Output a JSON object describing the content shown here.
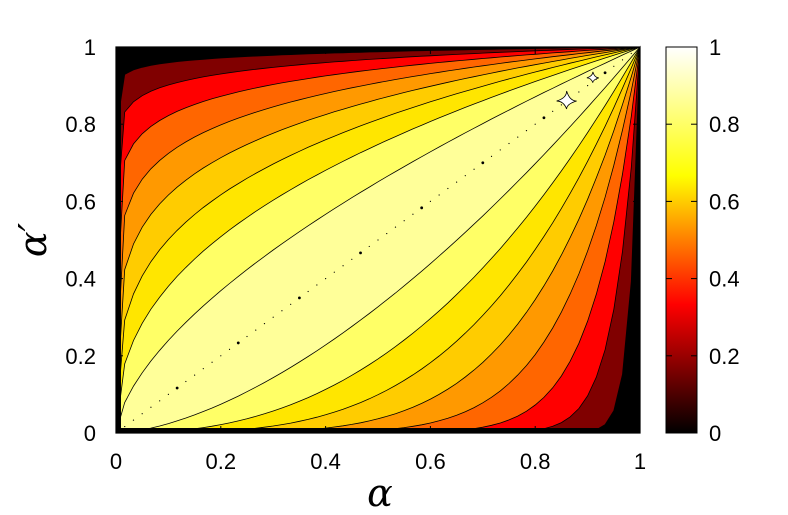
{
  "chart_data": {
    "type": "heatmap",
    "title": "",
    "xlabel": "α",
    "ylabel": "α′",
    "xlim": [
      0,
      1
    ],
    "ylim": [
      0,
      1
    ],
    "xticks": [
      "0",
      "0.2",
      "0.4",
      "0.6",
      "0.8",
      "1"
    ],
    "yticks": [
      "0",
      "0.2",
      "0.4",
      "0.6",
      "0.8",
      "1"
    ],
    "colorbar": {
      "range": [
        0,
        1
      ],
      "ticks": [
        "0",
        "0.2",
        "0.4",
        "0.6",
        "0.8",
        "1"
      ],
      "colormap": [
        "#000000",
        "#ff0000",
        "#ffff00",
        "#ffffff"
      ]
    },
    "contour_levels": [
      0.1,
      0.2,
      0.3,
      0.4,
      0.5,
      0.6,
      0.7,
      0.8,
      0.9
    ],
    "contour_colors": [
      "#000000",
      "#800000",
      "#ff0000",
      "#ff6600",
      "#ff9900",
      "#ffcc00",
      "#ffe600",
      "#ffff66",
      "#ffff99",
      "#ffffff"
    ],
    "max_regions_near": [
      [
        0.86,
        0.86
      ],
      [
        0.91,
        0.92
      ]
    ],
    "grid": false
  }
}
